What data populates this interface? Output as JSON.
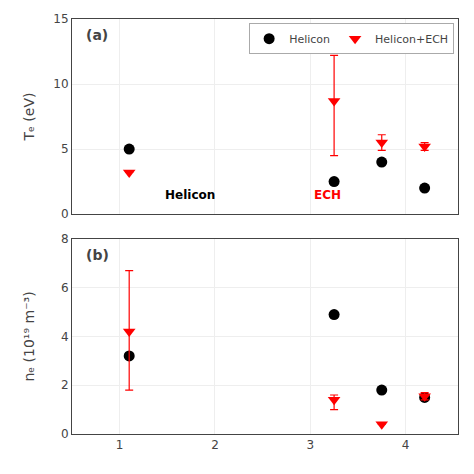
{
  "chart_data": [
    {
      "type": "scatter",
      "title": "(a)",
      "ylabel": "Tₑ (eV)",
      "xlim": [
        0.5,
        4.55
      ],
      "xticks": [
        1,
        2,
        3,
        4
      ],
      "ylim": [
        0,
        15
      ],
      "yticks": [
        0,
        5,
        10,
        15
      ],
      "grid": true,
      "legend": "upper right",
      "tick_labels": "y",
      "series": [
        {
          "name": "Helicon",
          "color": "black",
          "marker": "circle",
          "x": [
            1.1,
            3.25,
            3.75,
            4.2
          ],
          "values": [
            5.0,
            2.5,
            4.0,
            2.0
          ],
          "yerr_plus": [
            0.0,
            0.0,
            0.15,
            0.0
          ],
          "yerr_minus": [
            0.0,
            0.0,
            0.15,
            0.0
          ]
        },
        {
          "name": "Helicon+ECH",
          "color": "red",
          "marker": "triangle-down",
          "x": [
            1.1,
            3.25,
            3.75,
            4.2
          ],
          "values": [
            3.2,
            8.7,
            5.5,
            5.2
          ],
          "yerr_plus": [
            0.0,
            3.5,
            0.6,
            0.3
          ],
          "yerr_minus": [
            0.0,
            4.2,
            0.6,
            0.3
          ]
        }
      ],
      "annotations": [
        {
          "text": "Helicon",
          "x": 1.45,
          "y": 0.75,
          "color": "black"
        },
        {
          "text": "ECH",
          "x": 3.02,
          "y": 0.75,
          "color": "red"
        }
      ]
    },
    {
      "type": "scatter",
      "title": "(b)",
      "ylabel": "nₑ (10¹⁹ m⁻³)",
      "xlim": [
        0.5,
        4.55
      ],
      "xticks": [
        1,
        2,
        3,
        4
      ],
      "ylim": [
        0,
        8
      ],
      "yticks": [
        0,
        2,
        4,
        6,
        8
      ],
      "grid": true,
      "series": [
        {
          "name": "Helicon",
          "color": "black",
          "marker": "circle",
          "x": [
            1.1,
            3.25,
            3.75,
            4.2
          ],
          "values": [
            3.2,
            4.9,
            1.8,
            1.5
          ],
          "yerr_plus": [
            0.1,
            0.1,
            0.0,
            0.0
          ],
          "yerr_minus": [
            0.1,
            0.1,
            0.0,
            0.0
          ]
        },
        {
          "name": "Helicon+ECH",
          "color": "red",
          "marker": "triangle-down",
          "x": [
            1.1,
            3.25,
            3.75,
            4.2
          ],
          "values": [
            4.2,
            1.4,
            0.4,
            1.55
          ],
          "yerr_plus": [
            2.5,
            0.2,
            0.0,
            0.15
          ],
          "yerr_minus": [
            2.4,
            0.4,
            0.0,
            0.15
          ]
        }
      ]
    }
  ]
}
